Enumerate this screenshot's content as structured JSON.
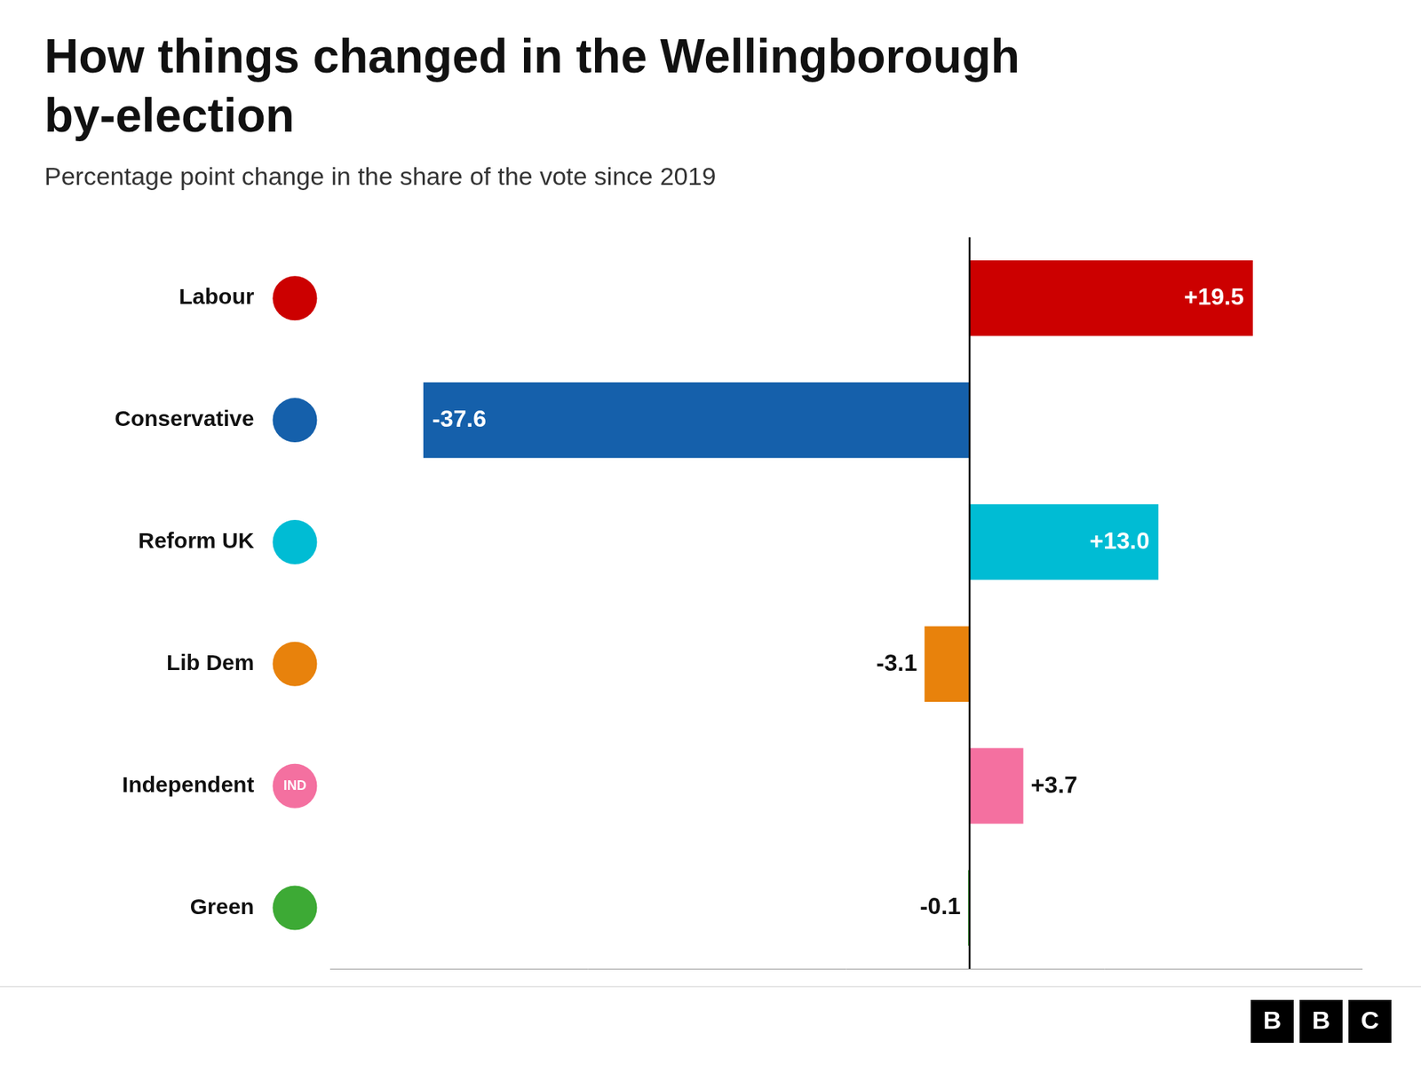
{
  "chart_data": {
    "type": "bar",
    "orientation": "horizontal",
    "title": [
      "How things changed in the Wellingborough",
      "by-election"
    ],
    "subtitle": "Percentage point change in the share of the vote since 2019",
    "categories": [
      "Labour",
      "Conservative",
      "Reform UK",
      "Lib Dem",
      "Independent",
      "Green"
    ],
    "values": [
      19.5,
      -37.6,
      13.0,
      -3.1,
      3.7,
      -0.1
    ],
    "value_labels": [
      "+19.5",
      "-37.6",
      "+13.0",
      "-3.1",
      "+3.7",
      "-0.1"
    ],
    "colors": [
      "#cc0000",
      "#1560ab",
      "#00bcd4",
      "#e8820c",
      "#f470a0",
      "#3daa35"
    ],
    "xlim": [
      -44,
      27
    ],
    "grid": false,
    "legend": false,
    "data_labels": true,
    "tick_labels": "y",
    "annotations": [
      {
        "text": "IND",
        "category": "Independent"
      },
      {
        "text": "BBC"
      }
    ]
  }
}
